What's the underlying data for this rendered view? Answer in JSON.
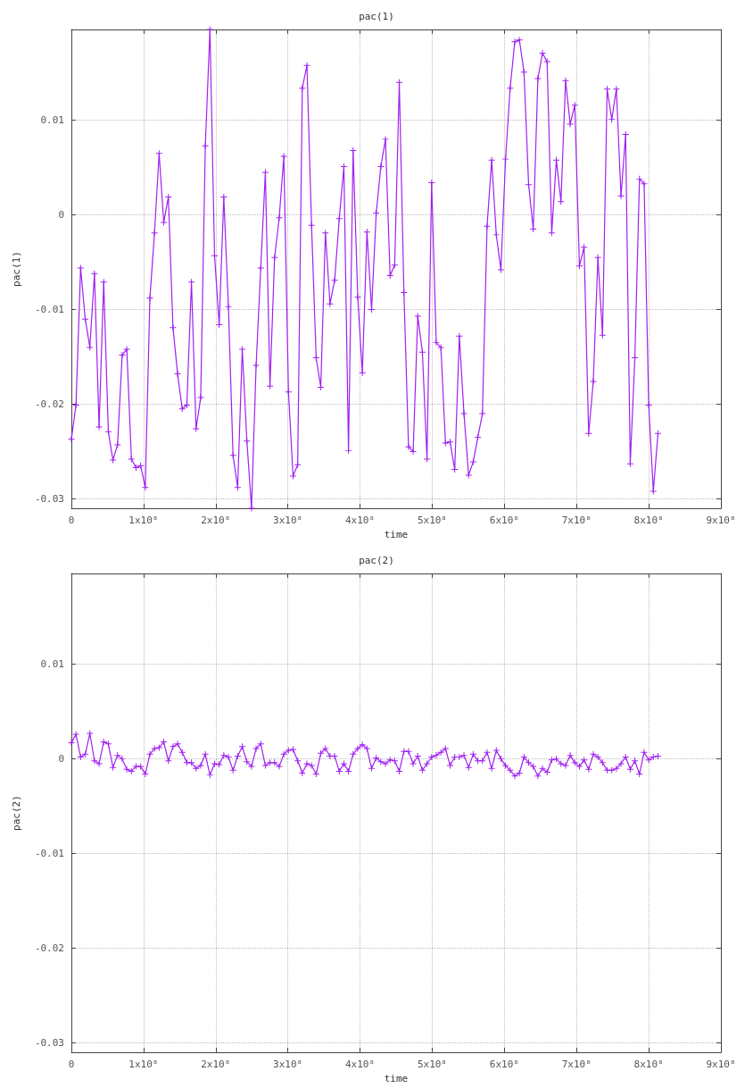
{
  "chart_data": [
    {
      "type": "line",
      "title": "pac(1)",
      "xlabel": "time",
      "ylabel": "pac(1)",
      "x": [
        0,
        6400000,
        12800000,
        19200000,
        25600000,
        32000000,
        38400000,
        44800000,
        51200000,
        57600000,
        64000000,
        70400000,
        76800000,
        83200000,
        89600000,
        96000000,
        102400000,
        108800000,
        115200000,
        121600000,
        128000000,
        134400000,
        140800000,
        147200000,
        153600000,
        160000000,
        166400000,
        172800000,
        179200000,
        185600000,
        192000000,
        198400000,
        204800000,
        211200000,
        217600000,
        224000000,
        230400000,
        236800000,
        243200000,
        249600000,
        256000000,
        262400000,
        268800000,
        275200000,
        281600000,
        288000000,
        294400000,
        300800000,
        307200000,
        313600000,
        320000000,
        326400000,
        332800000,
        339200000,
        345600000,
        352000000,
        358400000,
        364800000,
        371200000,
        377600000,
        384000000,
        390400000,
        396800000,
        403200000,
        409600000,
        416000000,
        422400000,
        428800000,
        435200000,
        441600000,
        448000000,
        454400000,
        460800000,
        467200000,
        473600000,
        480000000,
        486400000,
        492800000,
        499200000,
        505600000,
        512000000,
        518400000,
        524800000,
        531200000,
        537600000,
        544000000,
        550400000,
        556800000,
        563200000,
        569600000,
        576000000,
        582400000,
        588800000,
        595200000,
        601600000,
        608000000,
        614400000,
        620800000,
        627200000,
        633600000,
        640000000,
        646400000,
        652800000,
        659200000,
        665600000,
        672000000,
        678400000,
        684800000,
        691200000,
        697600000,
        704000000,
        710400000,
        716800000,
        723200000,
        729600000,
        736000000,
        742400000,
        748800000,
        755200000,
        761600000,
        768000000,
        774400000,
        780800000,
        787200000,
        793600000,
        800000000,
        806400000,
        812800000
      ],
      "series": [
        {
          "color": "#a020f0",
          "values": [
            -0.0237,
            -0.0201,
            -0.0056,
            -0.011,
            -0.014,
            -0.0062,
            -0.0224,
            -0.0071,
            -0.0229,
            -0.0259,
            -0.0243,
            -0.0148,
            -0.0142,
            -0.0258,
            -0.0267,
            -0.0265,
            -0.0288,
            -0.0088,
            -0.0019,
            0.0065,
            -0.0008,
            0.0019,
            -0.0119,
            -0.0168,
            -0.0205,
            -0.0201,
            -0.0071,
            -0.0226,
            -0.0193,
            0.0073,
            0.0196,
            -0.0043,
            -0.0116,
            0.0019,
            -0.0097,
            -0.0254,
            -0.0288,
            -0.0142,
            -0.0239,
            -0.031,
            -0.0159,
            -0.0056,
            0.0045,
            -0.0181,
            -0.0045,
            -0.0003,
            0.0062,
            -0.0187,
            -0.0276,
            -0.0264,
            0.0134,
            0.0158,
            -0.0011,
            -0.0151,
            -0.0182,
            -0.0019,
            -0.0094,
            -0.0069,
            -0.0004,
            0.0051,
            -0.0249,
            0.0068,
            -0.0087,
            -0.0167,
            -0.0018,
            -0.01,
            0.0002,
            0.0051,
            0.008,
            -0.0064,
            -0.0053,
            0.014,
            -0.0082,
            -0.0245,
            -0.025,
            -0.0107,
            -0.0145,
            -0.0258,
            0.0034,
            -0.0135,
            -0.014,
            -0.0241,
            -0.024,
            -0.0269,
            -0.0128,
            -0.021,
            -0.0275,
            -0.0261,
            -0.0235,
            -0.021,
            -0.0012,
            0.0058,
            -0.0021,
            -0.0058,
            0.0059,
            0.0134,
            0.0183,
            0.0185,
            0.0151,
            0.0032,
            -0.0015,
            0.0144,
            0.0171,
            0.0162,
            -0.0019,
            0.0058,
            0.0014,
            0.0142,
            0.0096,
            0.0116,
            -0.0054,
            -0.0034,
            -0.0231,
            -0.0176,
            -0.0045,
            -0.0127,
            0.0133,
            0.0101,
            0.0133,
            0.002,
            0.0085,
            -0.0263,
            -0.0151,
            0.0038,
            0.0033,
            -0.0201,
            -0.0292,
            -0.0231
          ]
        }
      ],
      "xlim": [
        0,
        900000000
      ],
      "xticks": [
        0,
        {
          "value": 100000000,
          "label": "1x10⁸"
        },
        {
          "value": 200000000,
          "label": "2x10⁸"
        },
        {
          "value": 300000000,
          "label": "3x10⁸"
        },
        {
          "value": 400000000,
          "label": "4x10⁸"
        },
        {
          "value": 500000000,
          "label": "5x10⁸"
        },
        {
          "value": 600000000,
          "label": "6x10⁸"
        },
        {
          "value": 700000000,
          "label": "7x10⁸"
        },
        {
          "value": 800000000,
          "label": "8x10⁸"
        },
        {
          "value": 900000000,
          "label": "9x10⁸"
        }
      ],
      "ylim": [
        -0.031,
        0.0196
      ],
      "yticks": [
        -0.03,
        -0.02,
        -0.01,
        0,
        0.01
      ],
      "grid": true,
      "marker": "cross",
      "line_style": "solid"
    },
    {
      "type": "line",
      "title": "pac(2)",
      "xlabel": "time",
      "ylabel": "pac(2)",
      "x": [
        0,
        6400000,
        12800000,
        19200000,
        25600000,
        32000000,
        38400000,
        44800000,
        51200000,
        57600000,
        64000000,
        70400000,
        76800000,
        83200000,
        89600000,
        96000000,
        102400000,
        108800000,
        115200000,
        121600000,
        128000000,
        134400000,
        140800000,
        147200000,
        153600000,
        160000000,
        166400000,
        172800000,
        179200000,
        185600000,
        192000000,
        198400000,
        204800000,
        211200000,
        217600000,
        224000000,
        230400000,
        236800000,
        243200000,
        249600000,
        256000000,
        262400000,
        268800000,
        275200000,
        281600000,
        288000000,
        294400000,
        300800000,
        307200000,
        313600000,
        320000000,
        326400000,
        332800000,
        339200000,
        345600000,
        352000000,
        358400000,
        364800000,
        371200000,
        377600000,
        384000000,
        390400000,
        396800000,
        403200000,
        409600000,
        416000000,
        422400000,
        428800000,
        435200000,
        441600000,
        448000000,
        454400000,
        460800000,
        467200000,
        473600000,
        480000000,
        486400000,
        492800000,
        499200000,
        505600000,
        512000000,
        518400000,
        524800000,
        531200000,
        537600000,
        544000000,
        550400000,
        556800000,
        563200000,
        569600000,
        576000000,
        582400000,
        588800000,
        595200000,
        601600000,
        608000000,
        614400000,
        620800000,
        627200000,
        633600000,
        640000000,
        646400000,
        652800000,
        659200000,
        665600000,
        672000000,
        678400000,
        684800000,
        691200000,
        697600000,
        704000000,
        710400000,
        716800000,
        723200000,
        729600000,
        736000000,
        742400000,
        748800000,
        755200000,
        761600000,
        768000000,
        774400000,
        780800000,
        787200000,
        793600000,
        800000000,
        806400000,
        812800000
      ],
      "series": [
        {
          "color": "#a020f0",
          "values": [
            0.0017,
            0.0026,
            0.0002,
            0.0005,
            0.0027,
            -0.0002,
            -0.0005,
            0.0018,
            0.0016,
            -0.0009,
            0.0004,
            0,
            -0.0011,
            -0.0013,
            -0.0008,
            -0.0008,
            -0.0016,
            0.0005,
            0.0011,
            0.0012,
            0.0018,
            -0.0002,
            0.0013,
            0.0016,
            0.0007,
            -0.0004,
            -0.0004,
            -0.001,
            -0.0007,
            0.0005,
            -0.0017,
            -0.0005,
            -0.0006,
            0.0004,
            0.0002,
            -0.0012,
            0.0003,
            0.0013,
            -0.0003,
            -0.0008,
            0.0011,
            0.0016,
            -0.0007,
            -0.0004,
            -0.0004,
            -0.0008,
            0.0005,
            0.0009,
            0.001,
            -0.0002,
            -0.0015,
            -0.0005,
            -0.0007,
            -0.0016,
            0.0006,
            0.0011,
            0.0003,
            0.0003,
            -0.0013,
            -0.0005,
            -0.0013,
            0.0005,
            0.0011,
            0.0015,
            0.0011,
            -0.001,
            0.0001,
            -0.0003,
            -0.0005,
            -0.0001,
            -0.0002,
            -0.0013,
            0.0008,
            0.0008,
            -0.0005,
            0.0003,
            -0.0012,
            -0.0005,
            0.0002,
            0.0004,
            0.0007,
            0.0011,
            -0.0007,
            0.0002,
            0.0002,
            0.0004,
            -0.0009,
            0.0005,
            -0.0002,
            -0.0002,
            0.0007,
            -0.001,
            0.0009,
            0,
            -0.0007,
            -0.0012,
            -0.0018,
            -0.0015,
            0.0002,
            -0.0004,
            -0.0008,
            -0.0018,
            -0.001,
            -0.0014,
            -0.0001,
            0,
            -0.0005,
            -0.0007,
            0.0004,
            -0.0004,
            -0.0008,
            -0.0001,
            -0.0011,
            0.0005,
            0.0002,
            -0.0004,
            -0.0012,
            -0.0012,
            -0.001,
            -0.0005,
            0.0002,
            -0.0011,
            -0.0002,
            -0.0016,
            0.0007,
            -0.0001,
            0.0002,
            0.0003
          ]
        }
      ],
      "xlim": [
        0,
        900000000
      ],
      "xticks": [
        0,
        {
          "value": 100000000,
          "label": "1x10⁸"
        },
        {
          "value": 200000000,
          "label": "2x10⁸"
        },
        {
          "value": 300000000,
          "label": "3x10⁸"
        },
        {
          "value": 400000000,
          "label": "4x10⁸"
        },
        {
          "value": 500000000,
          "label": "5x10⁸"
        },
        {
          "value": 600000000,
          "label": "6x10⁸"
        },
        {
          "value": 700000000,
          "label": "7x10⁸"
        },
        {
          "value": 800000000,
          "label": "8x10⁸"
        },
        {
          "value": 900000000,
          "label": "9x10⁸"
        }
      ],
      "ylim": [
        -0.031,
        0.0196
      ],
      "yticks": [
        -0.03,
        -0.02,
        -0.01,
        0,
        0.01
      ],
      "grid": true,
      "marker": "cross",
      "line_style": "solid"
    }
  ]
}
